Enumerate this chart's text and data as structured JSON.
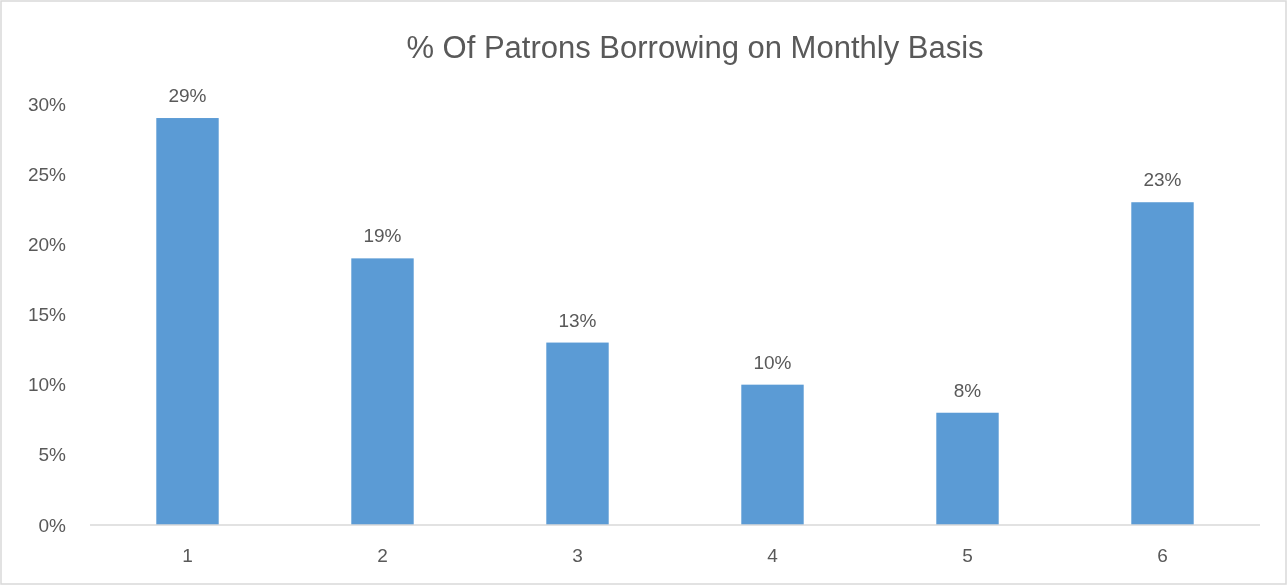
{
  "chart_data": {
    "type": "bar",
    "title": "% Of Patrons Borrowing on Monthly Basis",
    "categories": [
      "1",
      "2",
      "3",
      "4",
      "5",
      "6"
    ],
    "values": [
      29,
      19,
      13,
      10,
      8,
      23
    ],
    "color": "#5b9bd5",
    "ylim": [
      0,
      30
    ],
    "yticks": [
      {
        "value": 0,
        "label": "0%"
      },
      {
        "value": 5,
        "label": "5%"
      },
      {
        "value": 10,
        "label": "10%"
      },
      {
        "value": 15,
        "label": "15%"
      },
      {
        "value": 20,
        "label": "20%"
      },
      {
        "value": 25,
        "label": "25%"
      },
      {
        "value": 30,
        "label": "30%"
      }
    ],
    "value_labels": [
      "29%",
      "19%",
      "13%",
      "10%",
      "8%",
      "23%"
    ]
  }
}
